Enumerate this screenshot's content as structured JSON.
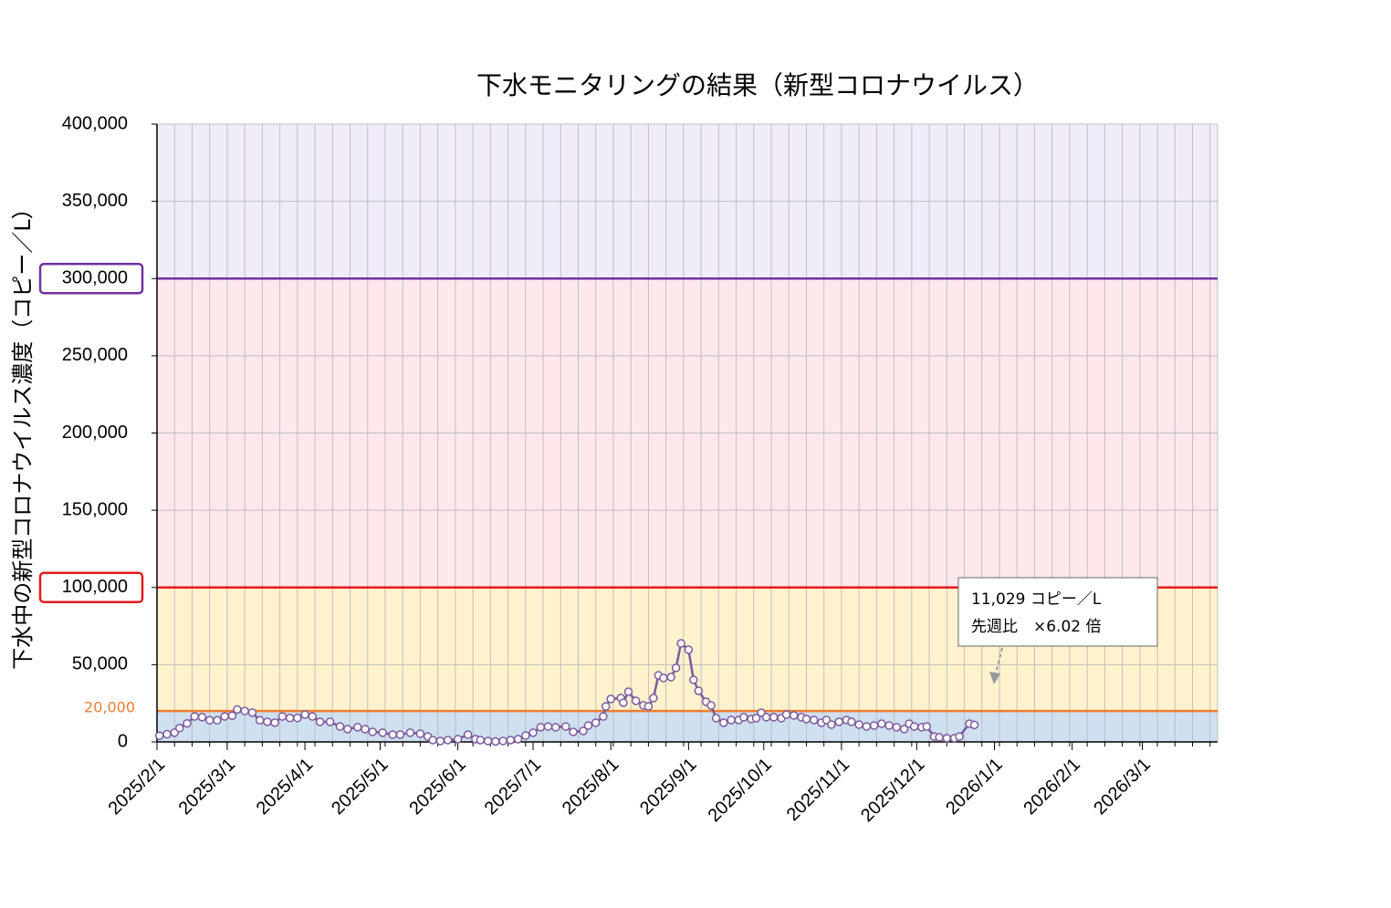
{
  "chart_data": {
    "type": "line",
    "title": "下水モニタリングの結果（新型コロナウイルス）",
    "y_label": "下水中の新型コロナウイルス濃度（コピー／L）",
    "color": "#7b5a9e",
    "x": [
      "2025/2/2",
      "2025/2/5",
      "2025/2/8",
      "2025/2/10",
      "2025/2/13",
      "2025/2/16",
      "2025/2/19",
      "2025/2/22",
      "2025/2/25",
      "2025/2/28",
      "2025/3/3",
      "2025/3/5",
      "2025/3/8",
      "2025/3/11",
      "2025/3/14",
      "2025/3/17",
      "2025/3/20",
      "2025/3/23",
      "2025/3/26",
      "2025/3/29",
      "2025/4/1",
      "2025/4/4",
      "2025/4/7",
      "2025/4/11",
      "2025/4/15",
      "2025/4/18",
      "2025/4/22",
      "2025/4/25",
      "2025/4/28",
      "2025/5/2",
      "2025/5/6",
      "2025/5/9",
      "2025/5/13",
      "2025/5/17",
      "2025/5/20",
      "2025/5/22",
      "2025/5/25",
      "2025/5/28",
      "2025/6/1",
      "2025/6/5",
      "2025/6/8",
      "2025/6/10",
      "2025/6/13",
      "2025/6/16",
      "2025/6/19",
      "2025/6/22",
      "2025/6/25",
      "2025/6/28",
      "2025/7/1",
      "2025/7/4",
      "2025/7/7",
      "2025/7/10",
      "2025/7/14",
      "2025/7/17",
      "2025/7/21",
      "2025/7/23",
      "2025/7/26",
      "2025/7/29",
      "2025/7/30",
      "2025/8/1",
      "2025/8/5",
      "2025/8/6",
      "2025/8/8",
      "2025/8/11",
      "2025/8/14",
      "2025/8/16",
      "2025/8/18",
      "2025/8/20",
      "2025/8/22",
      "2025/8/25",
      "2025/8/27",
      "2025/8/29",
      "2025/9/1",
      "2025/9/3",
      "2025/9/5",
      "2025/9/8",
      "2025/9/10",
      "2025/9/12",
      "2025/9/15",
      "2025/9/18",
      "2025/9/21",
      "2025/9/23",
      "2025/9/26",
      "2025/9/28",
      "2025/9/30",
      "2025/10/2",
      "2025/10/5",
      "2025/10/8",
      "2025/10/10",
      "2025/10/13",
      "2025/10/16",
      "2025/10/18",
      "2025/10/21",
      "2025/10/24",
      "2025/10/26",
      "2025/10/28",
      "2025/10/31",
      "2025/11/3",
      "2025/11/5",
      "2025/11/8",
      "2025/11/11",
      "2025/11/14",
      "2025/11/17",
      "2025/11/20",
      "2025/11/23",
      "2025/11/26",
      "2025/11/28",
      "2025/11/30",
      "2025/12/3",
      "2025/12/5",
      "2025/12/8",
      "2025/12/10",
      "2025/12/13",
      "2025/12/16",
      "2025/12/18",
      "2025/12/22",
      "2025/12/24"
    ],
    "values": [
      4000,
      5000,
      6000,
      9000,
      12000,
      16500,
      16000,
      14000,
      14000,
      16500,
      17000,
      21000,
      20000,
      19000,
      14000,
      13000,
      12500,
      16500,
      15500,
      15500,
      17700,
      16500,
      13000,
      13000,
      10000,
      8300,
      9500,
      8300,
      6500,
      6000,
      4700,
      4700,
      6000,
      5300,
      3500,
      1200,
      600,
      1200,
      1800,
      4700,
      1800,
      1200,
      600,
      300,
      600,
      1200,
      1800,
      4100,
      6000,
      9500,
      10000,
      9500,
      10000,
      6500,
      7100,
      10600,
      12400,
      16500,
      23000,
      27800,
      28400,
      25400,
      32500,
      26600,
      23600,
      23000,
      28400,
      43100,
      41400,
      42000,
      47900,
      63800,
      59700,
      40200,
      33100,
      26000,
      23600,
      15400,
      12400,
      14200,
      14200,
      16000,
      14800,
      15400,
      18900,
      16000,
      16000,
      15400,
      17700,
      17100,
      16000,
      14800,
      14200,
      12400,
      14200,
      11200,
      13000,
      14200,
      13000,
      11200,
      10000,
      10600,
      11800,
      10600,
      9500,
      8300,
      11800,
      10000,
      9500,
      10000,
      3500,
      3000,
      2400,
      2400,
      3500,
      11800,
      11029
    ],
    "xlim": [
      "2025/2/1",
      "2026/3/31"
    ],
    "xticks": [
      "2025/2/1",
      "2025/3/1",
      "2025/4/1",
      "2025/5/1",
      "2025/6/1",
      "2025/7/1",
      "2025/8/1",
      "2025/9/1",
      "2025/10/1",
      "2025/11/1",
      "2025/12/1",
      "2026/1/1",
      "2026/2/1",
      "2026/3/1"
    ],
    "ylim": [
      0,
      400000
    ],
    "yticks": [
      0,
      {
        "value": 50000,
        "label": "50,000"
      },
      {
        "value": 100000,
        "label": "100,000"
      },
      {
        "value": 150000,
        "label": "150,000"
      },
      {
        "value": 200000,
        "label": "200,000"
      },
      {
        "value": 250000,
        "label": "250,000"
      },
      {
        "value": 300000,
        "label": "300,000"
      },
      {
        "value": 350000,
        "label": "350,000"
      },
      {
        "value": 400000,
        "label": "400,000"
      }
    ],
    "grid": true,
    "thresholds": [
      {
        "value": 20000,
        "label": "20,000",
        "color": "#ed7d31"
      },
      {
        "value": 100000,
        "color": "#e31a1c",
        "boxed": true
      },
      {
        "value": 300000,
        "color": "#7030a0",
        "boxed": true
      }
    ],
    "band_colors": [
      "#cfe0f1",
      "#fff2cc",
      "#ffe8ec",
      "#f1ecf9"
    ],
    "annotation": {
      "lines": [
        "11,029 コピー／L",
        "先週比　×6.02 倍"
      ]
    }
  }
}
